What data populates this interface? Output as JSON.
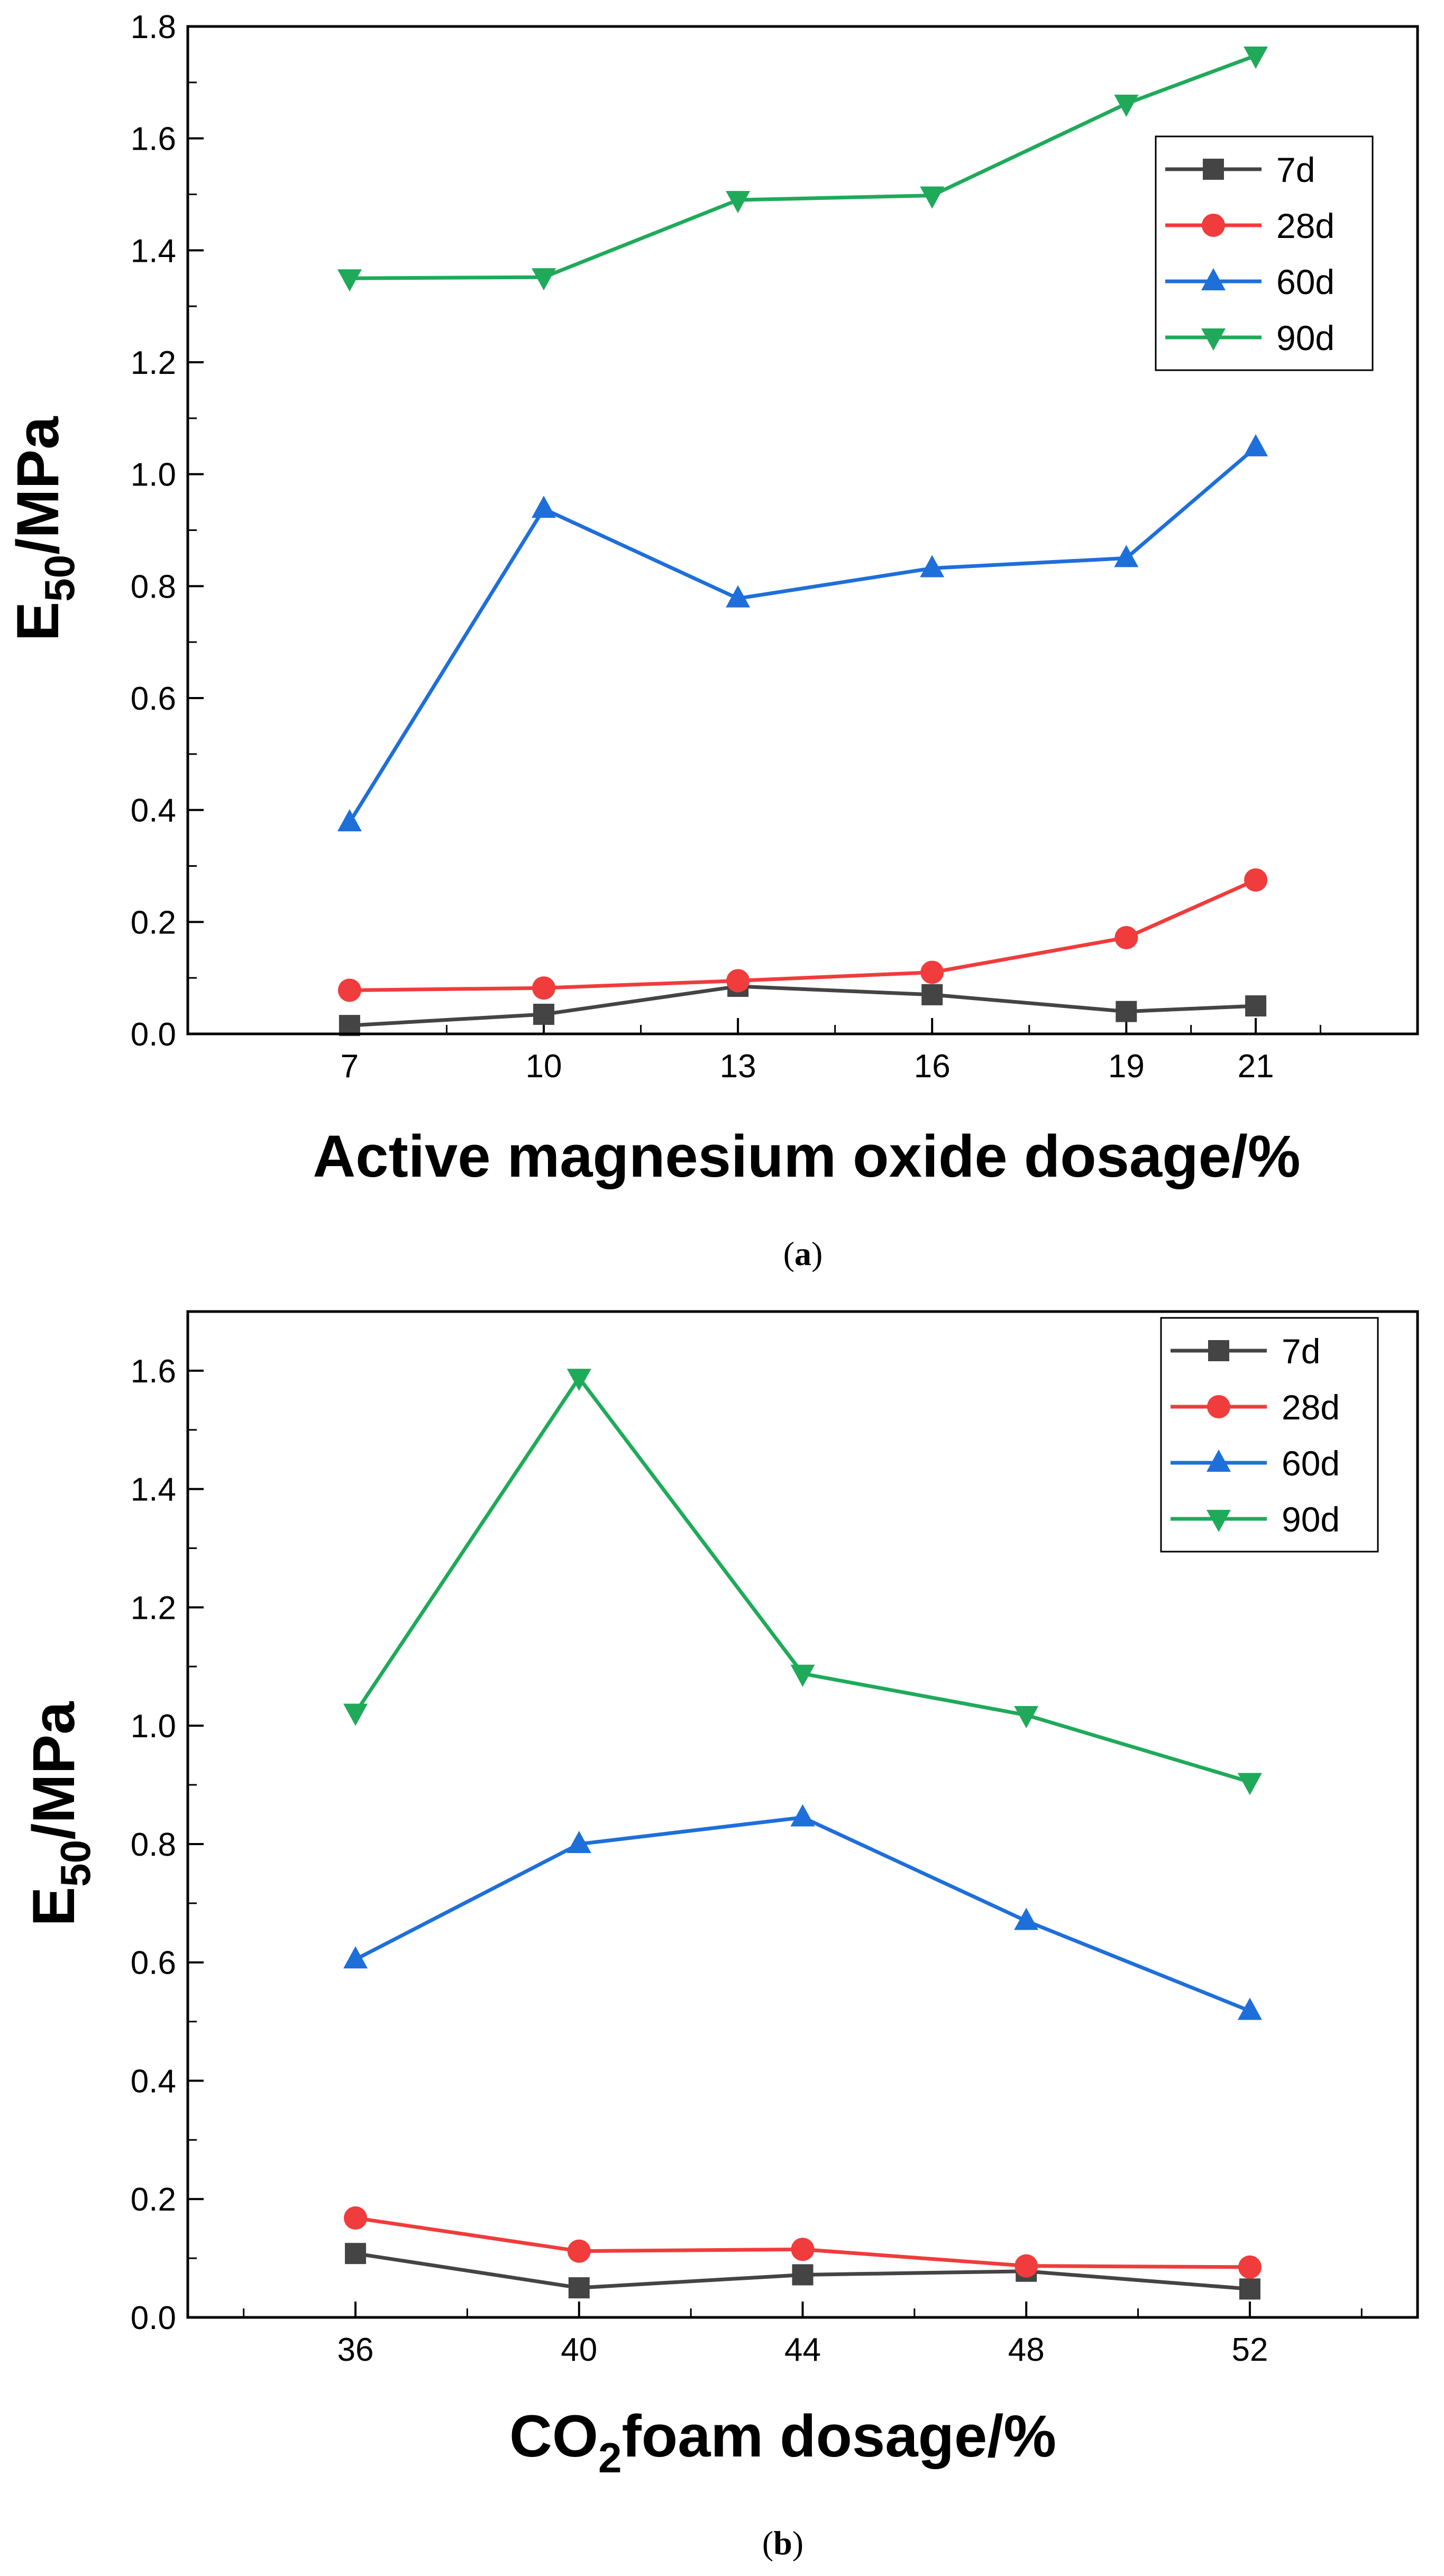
{
  "chart_data": [
    {
      "type": "line",
      "panel": "a",
      "caption": {
        "open": "(",
        "letter": "a",
        "close": ")"
      },
      "xlabel": "Active magnesium oxide dosage/%",
      "ylabel": {
        "main": "E",
        "sub": "50",
        "rest": "/MPa"
      },
      "x": [
        7,
        10,
        13,
        16,
        19,
        21
      ],
      "xlim": [
        4.5,
        23.5
      ],
      "xticks": [
        7,
        10,
        13,
        16,
        19,
        21
      ],
      "xminor": [
        8.5,
        11.5,
        14.5,
        17.5,
        20,
        22
      ],
      "ylim": [
        0,
        1.8
      ],
      "yticks": [
        "0.0",
        "0.2",
        "0.4",
        "0.6",
        "0.8",
        "1.0",
        "1.2",
        "1.4",
        "1.6",
        "1.8"
      ],
      "ytick_values": [
        0,
        0.2,
        0.4,
        0.6,
        0.8,
        1.0,
        1.2,
        1.4,
        1.6,
        1.8
      ],
      "yminor_step": 0.1,
      "legend_position": "top-right",
      "series": [
        {
          "name": "7d",
          "color": "#444444",
          "marker": "square",
          "values": [
            0.015,
            0.035,
            0.085,
            0.07,
            0.04,
            0.05
          ]
        },
        {
          "name": "28d",
          "color": "#f03c3c",
          "marker": "circle",
          "values": [
            0.078,
            0.082,
            0.095,
            0.11,
            0.172,
            0.275
          ]
        },
        {
          "name": "60d",
          "color": "#1e6fd9",
          "marker": "triangle-up",
          "values": [
            0.378,
            0.938,
            0.778,
            0.832,
            0.85,
            1.048
          ]
        },
        {
          "name": "90d",
          "color": "#1faa5a",
          "marker": "triangle-down",
          "values": [
            1.35,
            1.352,
            1.49,
            1.498,
            1.662,
            1.748
          ]
        }
      ]
    },
    {
      "type": "line",
      "panel": "b",
      "caption": {
        "open": "(",
        "letter": "b",
        "close": ")"
      },
      "xlabel": {
        "main": "CO",
        "sub": "2",
        "rest": "foam dosage/%"
      },
      "ylabel": {
        "main": "E",
        "sub": "50",
        "rest": "/MPa"
      },
      "x": [
        36,
        40,
        44,
        48,
        52
      ],
      "xlim": [
        33,
        55
      ],
      "xticks": [
        36,
        40,
        44,
        48,
        52
      ],
      "xminor": [
        34,
        38,
        42,
        46,
        50,
        54
      ],
      "ylim": [
        0,
        1.7
      ],
      "yticks": [
        "0.0",
        "0.2",
        "0.4",
        "0.6",
        "0.8",
        "1.0",
        "1.2",
        "1.4",
        "1.6"
      ],
      "ytick_values": [
        0,
        0.2,
        0.4,
        0.6,
        0.8,
        1.0,
        1.2,
        1.4,
        1.6
      ],
      "yminor_step": 0.1,
      "legend_position": "top-right",
      "series": [
        {
          "name": "7d",
          "color": "#444444",
          "marker": "square",
          "values": [
            0.108,
            0.05,
            0.072,
            0.078,
            0.048
          ]
        },
        {
          "name": "28d",
          "color": "#f03c3c",
          "marker": "circle",
          "values": [
            0.168,
            0.112,
            0.115,
            0.087,
            0.085
          ]
        },
        {
          "name": "60d",
          "color": "#1e6fd9",
          "marker": "triangle-up",
          "values": [
            0.605,
            0.8,
            0.845,
            0.67,
            0.518
          ]
        },
        {
          "name": "90d",
          "color": "#1faa5a",
          "marker": "triangle-down",
          "values": [
            1.022,
            1.588,
            1.088,
            1.018,
            0.905
          ]
        }
      ]
    }
  ]
}
